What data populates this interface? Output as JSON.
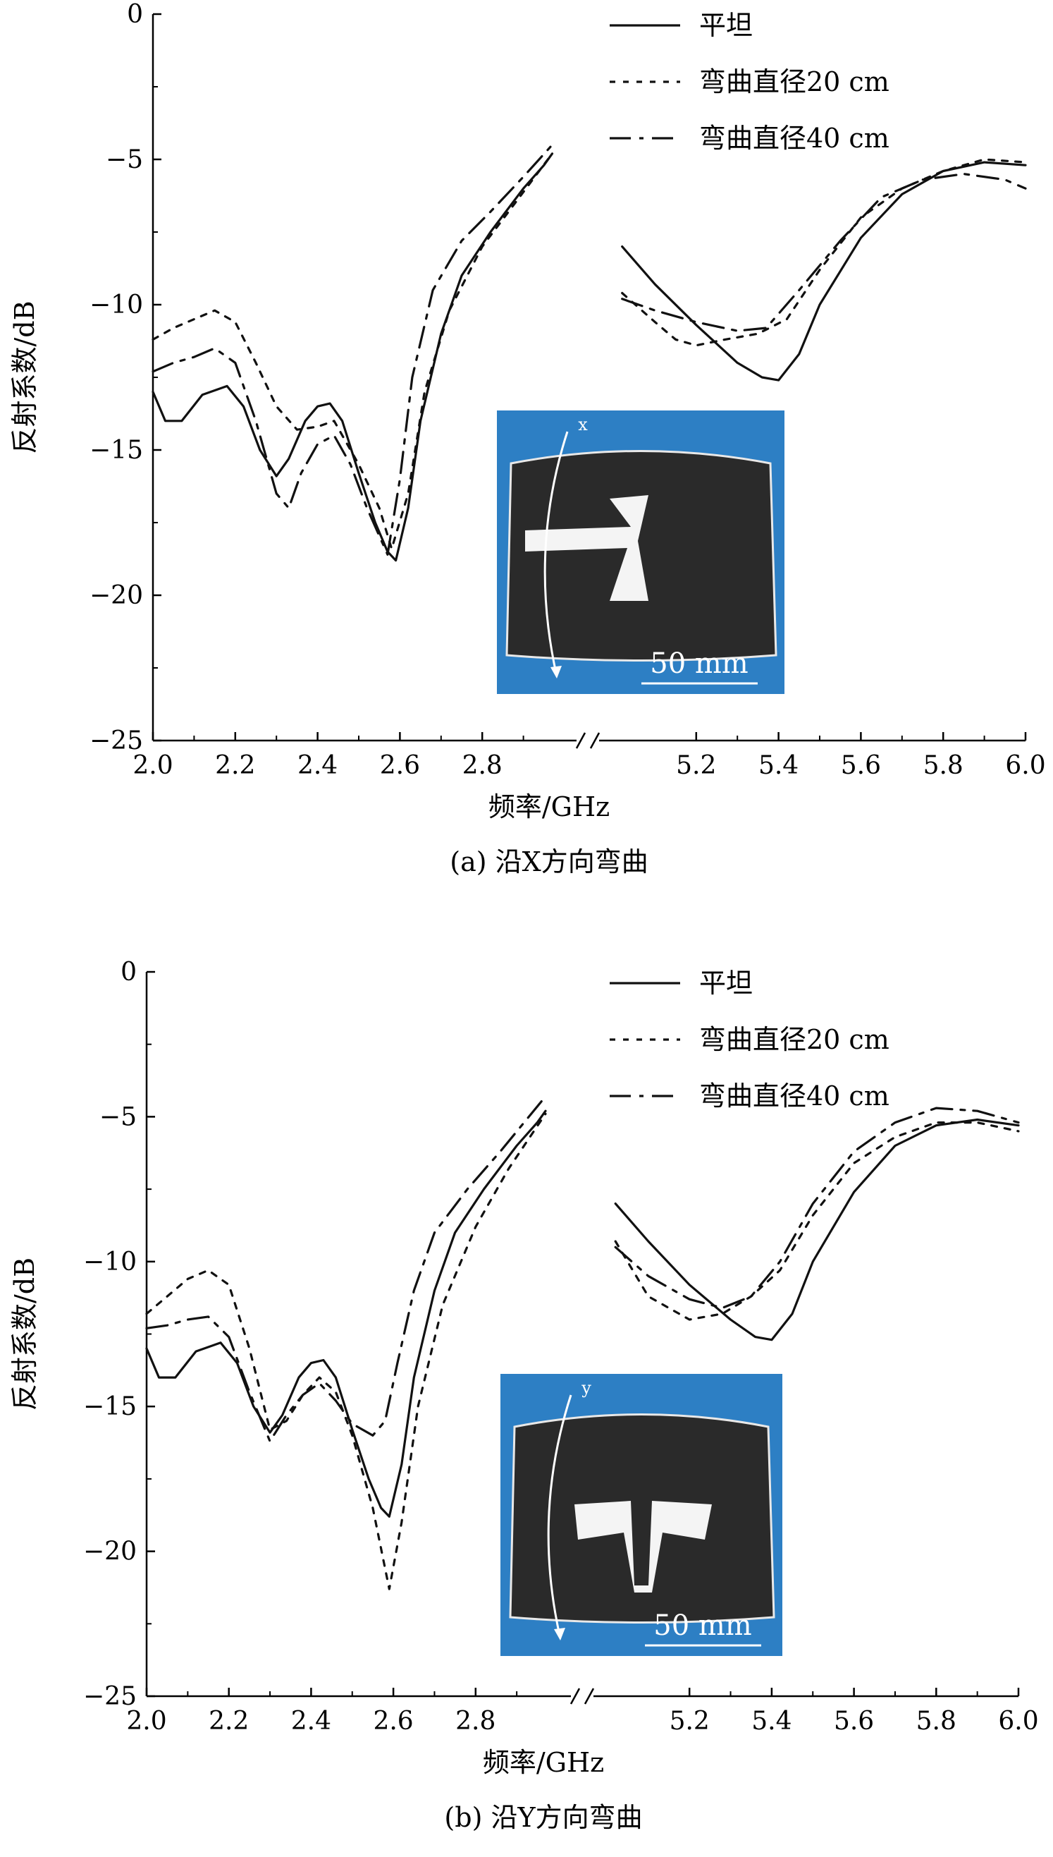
{
  "chart_data": [
    {
      "type": "line",
      "caption": "(a) 沿X方向弯曲",
      "xlabel": "频率/GHz",
      "ylabel": "反射系数/dB",
      "ylim": [
        -25,
        0
      ],
      "yticks": [
        0,
        -5,
        -10,
        -15,
        -20,
        -25
      ],
      "xlim_left": [
        2.0,
        3.0
      ],
      "xlim_right": [
        5.0,
        6.0
      ],
      "xticks_left": [
        "2.0",
        "2.2",
        "2.4",
        "2.6",
        "2.8"
      ],
      "xticks_right": [
        "5.2",
        "5.4",
        "5.6",
        "5.8",
        "6.0"
      ],
      "axis_break": true,
      "legend_position": "top-right",
      "inset": {
        "axis_label": "x",
        "scale_label": "50 mm"
      },
      "series": [
        {
          "name": "平坦",
          "style": "solid",
          "left": [
            [
              2.0,
              -13.0
            ],
            [
              2.03,
              -14.0
            ],
            [
              2.07,
              -14.0
            ],
            [
              2.12,
              -13.1
            ],
            [
              2.18,
              -12.8
            ],
            [
              2.22,
              -13.5
            ],
            [
              2.26,
              -15.0
            ],
            [
              2.3,
              -15.9
            ],
            [
              2.33,
              -15.3
            ],
            [
              2.37,
              -14.0
            ],
            [
              2.4,
              -13.5
            ],
            [
              2.43,
              -13.4
            ],
            [
              2.46,
              -14.0
            ],
            [
              2.5,
              -15.8
            ],
            [
              2.54,
              -17.5
            ],
            [
              2.57,
              -18.5
            ],
            [
              2.59,
              -18.8
            ],
            [
              2.62,
              -17.0
            ],
            [
              2.65,
              -14.0
            ],
            [
              2.7,
              -11.0
            ],
            [
              2.75,
              -9.0
            ],
            [
              2.82,
              -7.5
            ],
            [
              2.9,
              -6.0
            ],
            [
              2.95,
              -5.2
            ],
            [
              2.97,
              -4.8
            ]
          ],
          "right": [
            [
              5.02,
              -8.0
            ],
            [
              5.1,
              -9.3
            ],
            [
              5.2,
              -10.7
            ],
            [
              5.3,
              -12.0
            ],
            [
              5.36,
              -12.5
            ],
            [
              5.4,
              -12.6
            ],
            [
              5.45,
              -11.7
            ],
            [
              5.5,
              -10.0
            ],
            [
              5.6,
              -7.7
            ],
            [
              5.7,
              -6.2
            ],
            [
              5.8,
              -5.4
            ],
            [
              5.9,
              -5.1
            ],
            [
              6.0,
              -5.2
            ]
          ]
        },
        {
          "name": "弯曲直径20 cm",
          "style": "dotted",
          "left": [
            [
              2.0,
              -11.2
            ],
            [
              2.05,
              -10.8
            ],
            [
              2.1,
              -10.5
            ],
            [
              2.15,
              -10.2
            ],
            [
              2.2,
              -10.6
            ],
            [
              2.25,
              -12.0
            ],
            [
              2.3,
              -13.5
            ],
            [
              2.35,
              -14.3
            ],
            [
              2.4,
              -14.2
            ],
            [
              2.44,
              -14.0
            ],
            [
              2.5,
              -15.5
            ],
            [
              2.55,
              -17.0
            ],
            [
              2.58,
              -18.4
            ],
            [
              2.62,
              -16.5
            ],
            [
              2.66,
              -13.0
            ],
            [
              2.72,
              -10.2
            ],
            [
              2.8,
              -8.0
            ],
            [
              2.88,
              -6.5
            ],
            [
              2.97,
              -4.8
            ]
          ],
          "right": [
            [
              5.02,
              -9.6
            ],
            [
              5.1,
              -10.6
            ],
            [
              5.15,
              -11.2
            ],
            [
              5.2,
              -11.4
            ],
            [
              5.27,
              -11.2
            ],
            [
              5.35,
              -11.0
            ],
            [
              5.42,
              -10.5
            ],
            [
              5.5,
              -8.8
            ],
            [
              5.6,
              -7.0
            ],
            [
              5.7,
              -6.0
            ],
            [
              5.8,
              -5.4
            ],
            [
              5.9,
              -5.0
            ],
            [
              6.0,
              -5.1
            ]
          ]
        },
        {
          "name": "弯曲直径40 cm",
          "style": "dashdot",
          "left": [
            [
              2.0,
              -12.3
            ],
            [
              2.05,
              -12.0
            ],
            [
              2.1,
              -11.8
            ],
            [
              2.15,
              -11.5
            ],
            [
              2.2,
              -12.0
            ],
            [
              2.25,
              -14.0
            ],
            [
              2.3,
              -16.5
            ],
            [
              2.33,
              -17.0
            ],
            [
              2.36,
              -15.8
            ],
            [
              2.4,
              -14.8
            ],
            [
              2.44,
              -14.5
            ],
            [
              2.48,
              -15.5
            ],
            [
              2.52,
              -17.0
            ],
            [
              2.57,
              -18.6
            ],
            [
              2.6,
              -16.0
            ],
            [
              2.63,
              -12.5
            ],
            [
              2.68,
              -9.5
            ],
            [
              2.75,
              -7.8
            ],
            [
              2.82,
              -6.8
            ],
            [
              2.9,
              -5.6
            ],
            [
              2.97,
              -4.5
            ]
          ],
          "right": [
            [
              5.02,
              -9.8
            ],
            [
              5.1,
              -10.2
            ],
            [
              5.2,
              -10.6
            ],
            [
              5.3,
              -10.9
            ],
            [
              5.37,
              -10.8
            ],
            [
              5.45,
              -9.5
            ],
            [
              5.55,
              -7.8
            ],
            [
              5.65,
              -6.3
            ],
            [
              5.75,
              -5.7
            ],
            [
              5.85,
              -5.5
            ],
            [
              5.95,
              -5.7
            ],
            [
              6.0,
              -6.0
            ]
          ]
        }
      ]
    },
    {
      "type": "line",
      "caption": "(b) 沿Y方向弯曲",
      "xlabel": "频率/GHz",
      "ylabel": "反射系数/dB",
      "ylim": [
        -25,
        0
      ],
      "yticks": [
        0,
        -5,
        -10,
        -15,
        -20,
        -25
      ],
      "xlim_left": [
        2.0,
        3.0
      ],
      "xlim_right": [
        5.0,
        6.0
      ],
      "xticks_left": [
        "2.0",
        "2.2",
        "2.4",
        "2.6",
        "2.8"
      ],
      "xticks_right": [
        "5.2",
        "5.4",
        "5.6",
        "5.8",
        "6.0"
      ],
      "axis_break": true,
      "legend_position": "top-right",
      "inset": {
        "axis_label": "y",
        "scale_label": "50 mm"
      },
      "series": [
        {
          "name": "平坦",
          "style": "solid",
          "left": [
            [
              2.0,
              -13.0
            ],
            [
              2.03,
              -14.0
            ],
            [
              2.07,
              -14.0
            ],
            [
              2.12,
              -13.1
            ],
            [
              2.18,
              -12.8
            ],
            [
              2.22,
              -13.5
            ],
            [
              2.26,
              -15.0
            ],
            [
              2.3,
              -15.9
            ],
            [
              2.33,
              -15.3
            ],
            [
              2.37,
              -14.0
            ],
            [
              2.4,
              -13.5
            ],
            [
              2.43,
              -13.4
            ],
            [
              2.46,
              -14.0
            ],
            [
              2.5,
              -15.8
            ],
            [
              2.54,
              -17.5
            ],
            [
              2.57,
              -18.5
            ],
            [
              2.59,
              -18.8
            ],
            [
              2.62,
              -17.0
            ],
            [
              2.65,
              -14.0
            ],
            [
              2.7,
              -11.0
            ],
            [
              2.75,
              -9.0
            ],
            [
              2.82,
              -7.5
            ],
            [
              2.9,
              -6.0
            ],
            [
              2.95,
              -5.2
            ],
            [
              2.97,
              -4.8
            ]
          ],
          "right": [
            [
              5.02,
              -8.0
            ],
            [
              5.1,
              -9.3
            ],
            [
              5.2,
              -10.8
            ],
            [
              5.3,
              -12.0
            ],
            [
              5.36,
              -12.6
            ],
            [
              5.4,
              -12.7
            ],
            [
              5.45,
              -11.8
            ],
            [
              5.5,
              -10.0
            ],
            [
              5.6,
              -7.6
            ],
            [
              5.7,
              -6.0
            ],
            [
              5.8,
              -5.3
            ],
            [
              5.9,
              -5.1
            ],
            [
              6.0,
              -5.3
            ]
          ]
        },
        {
          "name": "弯曲直径20 cm",
          "style": "dotted",
          "left": [
            [
              2.0,
              -11.8
            ],
            [
              2.05,
              -11.2
            ],
            [
              2.1,
              -10.6
            ],
            [
              2.15,
              -10.3
            ],
            [
              2.2,
              -10.8
            ],
            [
              2.25,
              -13.0
            ],
            [
              2.3,
              -15.8
            ],
            [
              2.34,
              -15.5
            ],
            [
              2.38,
              -14.6
            ],
            [
              2.42,
              -14.0
            ],
            [
              2.46,
              -14.5
            ],
            [
              2.5,
              -16.0
            ],
            [
              2.55,
              -18.5
            ],
            [
              2.59,
              -21.3
            ],
            [
              2.62,
              -19.0
            ],
            [
              2.66,
              -15.0
            ],
            [
              2.72,
              -11.5
            ],
            [
              2.8,
              -8.8
            ],
            [
              2.88,
              -6.8
            ],
            [
              2.97,
              -4.9
            ]
          ],
          "right": [
            [
              5.02,
              -9.3
            ],
            [
              5.1,
              -11.2
            ],
            [
              5.2,
              -12.0
            ],
            [
              5.28,
              -11.8
            ],
            [
              5.35,
              -11.2
            ],
            [
              5.42,
              -10.3
            ],
            [
              5.5,
              -8.4
            ],
            [
              5.6,
              -6.6
            ],
            [
              5.7,
              -5.7
            ],
            [
              5.8,
              -5.2
            ],
            [
              5.9,
              -5.2
            ],
            [
              6.0,
              -5.5
            ]
          ]
        },
        {
          "name": "弯曲直径40 cm",
          "style": "dashdot",
          "left": [
            [
              2.0,
              -12.3
            ],
            [
              2.05,
              -12.2
            ],
            [
              2.1,
              -12.0
            ],
            [
              2.15,
              -11.9
            ],
            [
              2.2,
              -12.6
            ],
            [
              2.25,
              -14.5
            ],
            [
              2.3,
              -16.2
            ],
            [
              2.34,
              -15.3
            ],
            [
              2.38,
              -14.6
            ],
            [
              2.42,
              -14.2
            ],
            [
              2.46,
              -14.8
            ],
            [
              2.5,
              -15.6
            ],
            [
              2.55,
              -16.0
            ],
            [
              2.58,
              -15.5
            ],
            [
              2.61,
              -13.5
            ],
            [
              2.65,
              -11.0
            ],
            [
              2.7,
              -9.0
            ],
            [
              2.78,
              -7.5
            ],
            [
              2.86,
              -6.2
            ],
            [
              2.97,
              -4.3
            ]
          ],
          "right": [
            [
              5.02,
              -9.5
            ],
            [
              5.1,
              -10.5
            ],
            [
              5.2,
              -11.3
            ],
            [
              5.28,
              -11.6
            ],
            [
              5.35,
              -11.2
            ],
            [
              5.42,
              -10.0
            ],
            [
              5.5,
              -8.0
            ],
            [
              5.6,
              -6.2
            ],
            [
              5.7,
              -5.2
            ],
            [
              5.8,
              -4.7
            ],
            [
              5.9,
              -4.8
            ],
            [
              6.0,
              -5.2
            ]
          ]
        }
      ]
    }
  ]
}
